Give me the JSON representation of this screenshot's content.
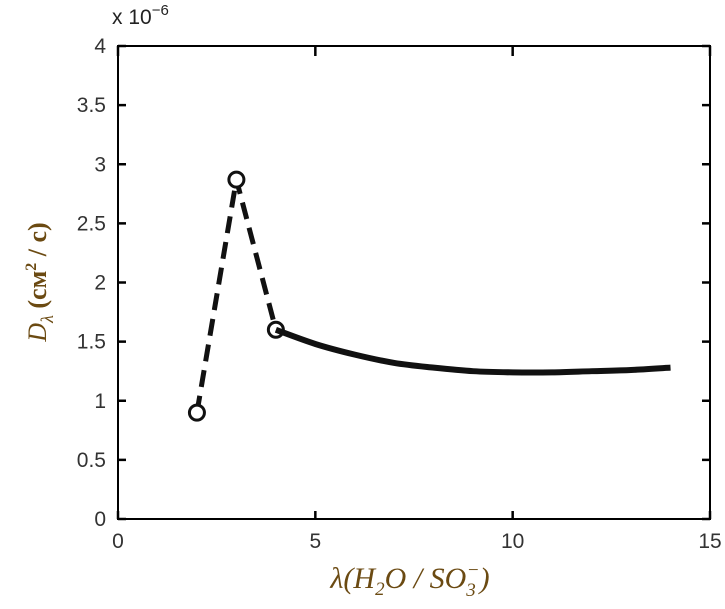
{
  "chart_data": {
    "type": "line",
    "exponent_label": "x 10",
    "exponent_power": "−6",
    "xlim": [
      0,
      15
    ],
    "ylim": [
      0,
      4
    ],
    "x_ticks": [
      0,
      5,
      10,
      15
    ],
    "x_tick_labels": [
      "0",
      "5",
      "10",
      "15"
    ],
    "y_ticks": [
      0,
      0.5,
      1,
      1.5,
      2,
      2.5,
      3,
      3.5,
      4
    ],
    "y_tick_labels": [
      "0",
      "0.5",
      "1",
      "1.5",
      "2",
      "2.5",
      "3",
      "3.5",
      "4"
    ],
    "ylabel": {
      "main": "D",
      "sub": "λ",
      "unit_open": " (см",
      "unit_sup": "2",
      "unit_close": " / с)"
    },
    "xlabel": {
      "lambda": "λ",
      "open": "(H",
      "sub1": "2",
      "mid": "O / SO",
      "sub2": "3",
      "sup2": "−",
      "close": ")"
    },
    "series": [
      {
        "style": "dashed",
        "markers": "open-circle",
        "points": [
          [
            2,
            0.9
          ],
          [
            3,
            2.87
          ],
          [
            4,
            1.6
          ]
        ]
      },
      {
        "style": "solid",
        "markers": "none",
        "points": [
          [
            4,
            1.6
          ],
          [
            5,
            1.48
          ],
          [
            6,
            1.39
          ],
          [
            7,
            1.32
          ],
          [
            8,
            1.28
          ],
          [
            9,
            1.25
          ],
          [
            10,
            1.24
          ],
          [
            11,
            1.24
          ],
          [
            12,
            1.25
          ],
          [
            13,
            1.26
          ],
          [
            14,
            1.28
          ]
        ]
      }
    ],
    "grid": false,
    "line_color": "#111111"
  }
}
